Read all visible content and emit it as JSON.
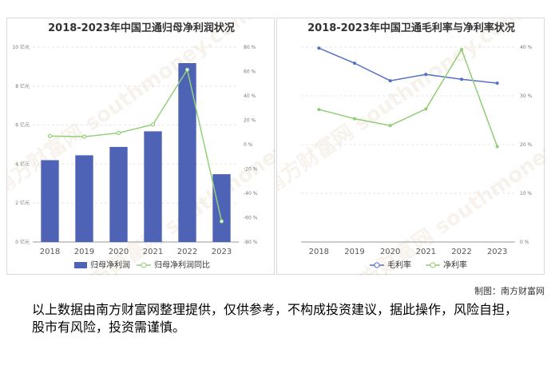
{
  "chart_data": [
    {
      "type": "bar",
      "title": "2018-2023年中国卫通归母净利润状况",
      "categories": [
        "2018",
        "2019",
        "2020",
        "2021",
        "2022",
        "2023"
      ],
      "series": [
        {
          "name": "归母净利润",
          "kind": "bar",
          "axis": "left",
          "values": [
            4.2,
            4.45,
            4.88,
            5.68,
            9.18,
            3.48
          ]
        },
        {
          "name": "归母净利润同比",
          "kind": "line",
          "axis": "right",
          "values": [
            7,
            6.5,
            9.5,
            16.5,
            61.5,
            -63
          ]
        }
      ],
      "left_axis": {
        "ticks": [
          "0 亿元",
          "2 亿元",
          "4 亿元",
          "6 亿元",
          "8 亿元",
          "10 亿元"
        ],
        "range": [
          0,
          10
        ]
      },
      "right_axis": {
        "ticks": [
          "-80 %",
          "-60 %",
          "-40 %",
          "-20 %",
          "0 %",
          "20 %",
          "40 %",
          "60 %",
          "80 %"
        ],
        "range": [
          -80,
          80
        ]
      },
      "legend_position": "bottom",
      "colors": {
        "bar": "#4e63b5",
        "line": "#93d07a"
      },
      "watermark": "南方财富网 southmoney.com"
    },
    {
      "type": "line",
      "title": "2018-2023年中国卫通毛利率与净利率状况",
      "categories": [
        "2018",
        "2019",
        "2020",
        "2021",
        "2022",
        "2023"
      ],
      "series": [
        {
          "name": "毛利率",
          "values": [
            39.8,
            36.7,
            33.1,
            34.4,
            33.4,
            32.6
          ]
        },
        {
          "name": "净利率",
          "values": [
            27.2,
            25.3,
            23.9,
            27.3,
            39.5,
            19.6
          ]
        }
      ],
      "right_axis": {
        "ticks": [
          "0 %",
          "10 %",
          "20 %",
          "30 %",
          "40 %"
        ],
        "range": [
          0,
          40
        ]
      },
      "legend_position": "bottom",
      "colors": {
        "gross": "#5470c6",
        "net": "#91cc75"
      },
      "watermark": "南方财富网 southmoney.com"
    }
  ],
  "credit": "制图：南方财富网",
  "disclaimer": "以上数据由南方财富网整理提供，仅供参考，不构成投资建议，据此操作，风险自担，股市有风险，投资需谨慎。"
}
